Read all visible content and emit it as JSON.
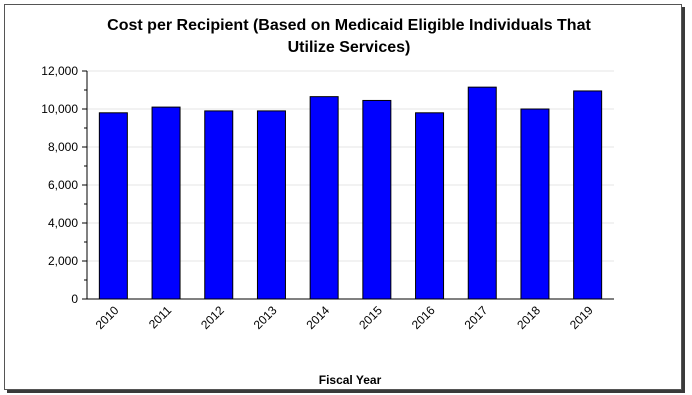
{
  "chart_data": {
    "type": "bar",
    "title_line1": "Cost per Recipient (Based on Medicaid Eligible Individuals That",
    "title_line2": "Utilize Services)",
    "xlabel": "Fiscal Year",
    "ylabel": "",
    "categories": [
      "2010",
      "2011",
      "2012",
      "2013",
      "2014",
      "2015",
      "2016",
      "2017",
      "2018",
      "2019"
    ],
    "values": [
      9800,
      10100,
      9900,
      9900,
      10650,
      10450,
      9800,
      11150,
      10000,
      10950
    ],
    "ylim": [
      0,
      12000
    ],
    "yticks": [
      0,
      2000,
      4000,
      6000,
      8000,
      10000,
      12000
    ],
    "ytick_labels": [
      "0",
      "2,000",
      "4,000",
      "6,000",
      "8,000",
      "10,000",
      "12,000"
    ],
    "bar_color": "#0000ff",
    "grid": true,
    "legend": "none"
  }
}
